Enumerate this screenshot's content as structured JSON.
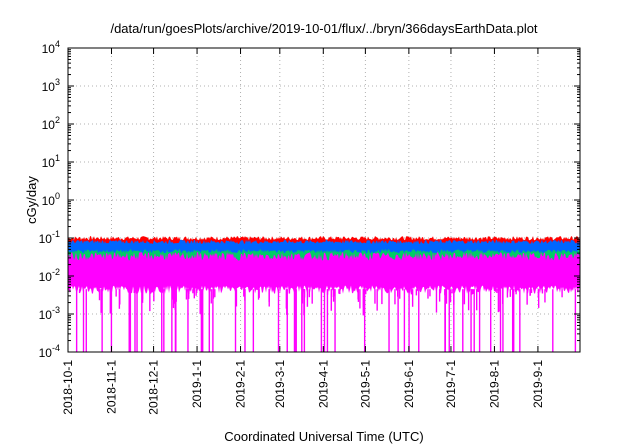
{
  "chart_data": {
    "type": "area",
    "title": "/data/run/goesPlots/archive/2019-10-01/flux/../bryn/366daysEarthData.plot",
    "xlabel": "Coordinated Universal Time (UTC)",
    "ylabel": "cGy/day",
    "yscale": "log",
    "grid": true,
    "ylim": [
      0.0001,
      10000
    ],
    "xlim": [
      "2018-10-01",
      "2019-10-01"
    ],
    "y_ticks": [
      {
        "base": "10",
        "exp": "-4",
        "value": 0.0001
      },
      {
        "base": "10",
        "exp": "-3",
        "value": 0.001
      },
      {
        "base": "10",
        "exp": "-2",
        "value": 0.01
      },
      {
        "base": "10",
        "exp": "-1",
        "value": 0.1
      },
      {
        "base": "10",
        "exp": "0",
        "value": 1
      },
      {
        "base": "10",
        "exp": "1",
        "value": 10
      },
      {
        "base": "10",
        "exp": "2",
        "value": 100
      },
      {
        "base": "10",
        "exp": "3",
        "value": 1000
      },
      {
        "base": "10",
        "exp": "4",
        "value": 10000
      }
    ],
    "x_ticks": [
      "2018-10-1",
      "2018-11-1",
      "2018-12-1",
      "2019-1-1",
      "2019-2-1",
      "2019-3-1",
      "2019-4-1",
      "2019-5-1",
      "2019-6-1",
      "2019-7-1",
      "2019-8-1",
      "2019-9-1"
    ],
    "series": [
      {
        "color": "#ff0000",
        "min": 0.05,
        "max": 0.1,
        "typical": 0.075
      },
      {
        "color": "#0066ff",
        "min": 0.03,
        "max": 0.08,
        "typical": 0.06
      },
      {
        "color": "#00cc66",
        "min": 0.02,
        "max": 0.045,
        "typical": 0.035
      },
      {
        "color": "#ff00ff",
        "min": 0.0001,
        "max": 0.04,
        "typical": 0.025,
        "floor": 0.0045
      }
    ]
  }
}
